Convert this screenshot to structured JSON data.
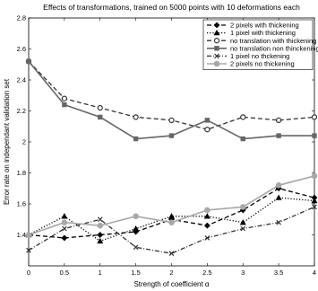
{
  "chart_data": {
    "type": "line",
    "title": "Effects of transformations, trained on 5000 points with 10 deformations each",
    "xlabel": "Strength of coefficient α",
    "ylabel": "Error rate on independant validation set",
    "xlim": [
      0,
      4
    ],
    "ylim": [
      1.2,
      2.8
    ],
    "x_ticks": [
      "0",
      "0.5",
      "1",
      "1.5",
      "2",
      "2.5",
      "3",
      "3.5",
      "4"
    ],
    "y_ticks": [
      "1.4",
      "1.6",
      "1.8",
      "2",
      "2.2",
      "2.4",
      "2.6",
      "2.8"
    ],
    "grid": false,
    "legend_position": "top-right",
    "x": [
      0,
      0.5,
      1,
      1.5,
      2,
      2.5,
      3,
      3.5,
      4
    ],
    "series": [
      {
        "name": "2 pixels with thickening",
        "values": [
          1.4,
          1.38,
          1.4,
          1.42,
          1.5,
          1.46,
          1.56,
          1.7,
          1.64
        ],
        "color": "#000000",
        "dash": "dashed",
        "marker": "diamond-filled"
      },
      {
        "name": "1 pixel with thickening",
        "values": [
          1.4,
          1.52,
          1.36,
          1.44,
          1.52,
          1.52,
          1.48,
          1.64,
          1.62
        ],
        "color": "#000000",
        "dash": "dotted",
        "marker": "triangle-filled"
      },
      {
        "name": "no translation with thickening",
        "values": [
          2.52,
          2.28,
          2.22,
          2.16,
          2.14,
          2.08,
          2.16,
          2.14,
          2.16
        ],
        "color": "#333333",
        "dash": "dashed",
        "marker": "circle-open"
      },
      {
        "name": "no translation non thinckening",
        "values": [
          2.52,
          2.24,
          2.16,
          2.02,
          2.04,
          2.14,
          2.02,
          2.04,
          2.04
        ],
        "color": "#666666",
        "dash": "solid",
        "marker": "square-filled"
      },
      {
        "name": "1 pixel no thckening",
        "values": [
          1.3,
          1.44,
          1.5,
          1.32,
          1.28,
          1.38,
          1.44,
          1.48,
          1.58
        ],
        "color": "#333333",
        "dash": "dashdot",
        "marker": "x"
      },
      {
        "name": "2 pixels no thickening",
        "values": [
          1.4,
          1.48,
          1.46,
          1.52,
          1.48,
          1.56,
          1.58,
          1.72,
          1.78
        ],
        "color": "#a8a8a8",
        "dash": "solid",
        "marker": "circle-filled"
      }
    ]
  }
}
